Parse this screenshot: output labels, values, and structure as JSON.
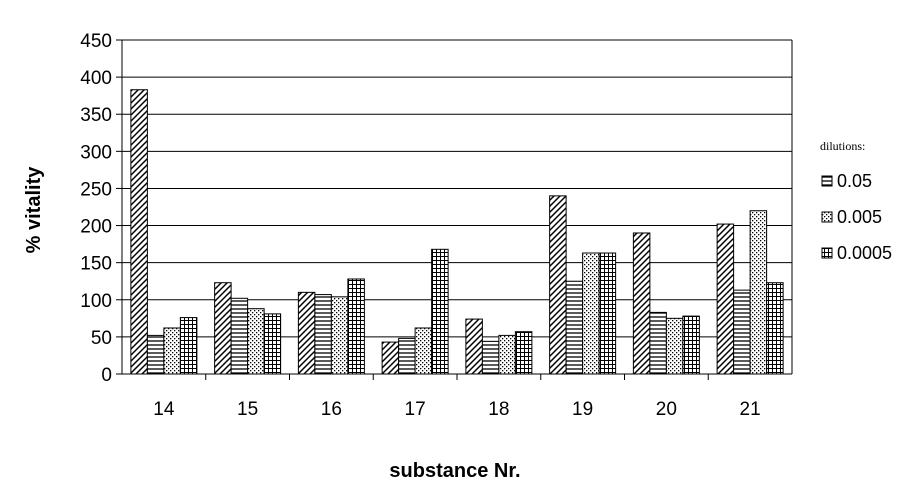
{
  "chart_data": {
    "type": "bar",
    "title": "",
    "xlabel": "substance Nr.",
    "ylabel": "% vitality",
    "categories": [
      "14",
      "15",
      "16",
      "17",
      "18",
      "19",
      "20",
      "21"
    ],
    "series": [
      {
        "name": "",
        "pattern": "diagonal",
        "values": [
          383,
          123,
          110,
          43,
          74,
          240,
          190,
          202
        ]
      },
      {
        "name": "0.05",
        "pattern": "horizontal",
        "values": [
          52,
          102,
          107,
          48,
          44,
          125,
          83,
          113
        ]
      },
      {
        "name": "0.005",
        "pattern": "dots",
        "values": [
          62,
          88,
          104,
          62,
          52,
          163,
          75,
          220
        ]
      },
      {
        "name": "0.0005",
        "pattern": "grid",
        "values": [
          76,
          81,
          128,
          168,
          57,
          163,
          78,
          123
        ]
      }
    ],
    "ylim": [
      0,
      450
    ],
    "yticks": [
      0,
      50,
      100,
      150,
      200,
      250,
      300,
      350,
      400,
      450
    ],
    "grid": true,
    "legend": {
      "title": "dilutions:",
      "position": "right"
    },
    "colors": {
      "bar_stroke": "#000000",
      "grid": "#000000",
      "background": "#ffffff"
    }
  }
}
